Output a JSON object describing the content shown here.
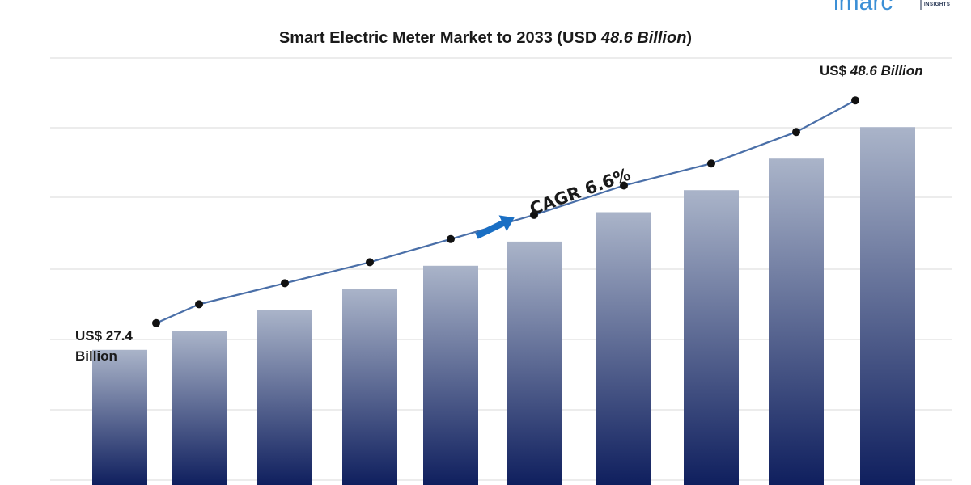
{
  "brand": {
    "logo_text": "imarc",
    "logo_subtext": "INSIGHTS"
  },
  "chart_data": {
    "type": "bar",
    "title_main": "Smart Electric Meter Market to 2033 (USD ",
    "title_emph": "48.6 Billion",
    "title_end": ")",
    "categories": [
      "",
      "",
      "",
      "",
      "",
      "",
      "",
      "",
      "",
      ""
    ],
    "values": [
      27.4,
      29.2,
      31.2,
      33.2,
      35.4,
      37.7,
      40.5,
      42.6,
      45.6,
      48.6
    ],
    "trend_line": [
      27.4,
      29.2,
      31.2,
      33.2,
      35.4,
      37.7,
      40.5,
      42.6,
      45.6,
      48.6
    ],
    "start_label_line1": "US$ 27.4",
    "start_label_line2": "Billion",
    "end_label_prefix": "US$ ",
    "end_label_value": "48.6 Billion",
    "cagr_label": "CAGR 6.6%",
    "xlabel": "",
    "ylabel": "",
    "grid": true,
    "colors": {
      "bar_top": "#a9b3c8",
      "bar_bottom": "#0f1f5e",
      "line": "#4a6fa8",
      "marker": "#111111",
      "arrow": "#1a6fc4",
      "grid": "#d9d9d9"
    }
  }
}
